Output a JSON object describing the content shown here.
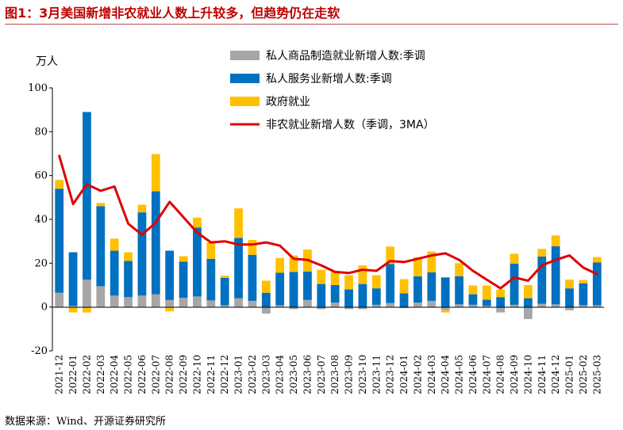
{
  "header": {
    "title": "图1：3月美国新增非农就业人数上升较多，但趋势仍在走软"
  },
  "footer": {
    "source": "数据来源：Wind、开源证券研究所"
  },
  "chart_data": {
    "type": "bar",
    "stacked": true,
    "unit_label": "万人",
    "ylim": [
      -20,
      100
    ],
    "yticks": [
      -20,
      0,
      20,
      40,
      60,
      80,
      100
    ],
    "grid": false,
    "legend_position": "top-right",
    "categories": [
      "2021-12",
      "2022-01",
      "2022-02",
      "2022-03",
      "2022-04",
      "2022-05",
      "2022-06",
      "2022-07",
      "2022-08",
      "2022-09",
      "2022-10",
      "2022-11",
      "2022-12",
      "2023-01",
      "2023-02",
      "2023-03",
      "2023-04",
      "2023-05",
      "2023-06",
      "2023-07",
      "2023-08",
      "2023-09",
      "2023-10",
      "2023-11",
      "2023-12",
      "2024-01",
      "2024-02",
      "2024-03",
      "2024-04",
      "2024-05",
      "2024-06",
      "2024-07",
      "2024-08",
      "2024-09",
      "2024-10",
      "2024-11",
      "2024-12",
      "2025-01",
      "2025-02",
      "2025-03"
    ],
    "series": [
      {
        "name": "私人商品制造就业新增人数:季调",
        "kind": "bar",
        "color": "#a6a6a6",
        "values": [
          6.5,
          0.5,
          12.5,
          9.5,
          5.2,
          4.5,
          5.2,
          5.8,
          3.2,
          4.2,
          4.8,
          3.0,
          0.8,
          4.0,
          2.8,
          -3.0,
          0.8,
          -1.0,
          3.2,
          -1.0,
          2.0,
          -1.0,
          -1.0,
          1.0,
          1.8,
          -0.5,
          2.0,
          2.8,
          -1.5,
          1.2,
          1.0,
          0.5,
          -2.5,
          1.0,
          -5.5,
          1.5,
          1.2,
          -1.5,
          0.8,
          0.8
        ]
      },
      {
        "name": "私人服务业新增人数:季调",
        "kind": "bar",
        "color": "#0070c0",
        "values": [
          47.5,
          24.5,
          76.5,
          36.5,
          20.5,
          16.5,
          38.0,
          47.0,
          22.5,
          16.5,
          31.5,
          19.0,
          12.5,
          27.5,
          21.0,
          6.5,
          14.8,
          16.0,
          13.0,
          10.5,
          8.0,
          8.0,
          10.5,
          7.5,
          17.8,
          6.2,
          12.0,
          13.0,
          13.5,
          12.8,
          4.8,
          2.8,
          4.5,
          18.8,
          4.0,
          21.5,
          26.5,
          8.5,
          10.0,
          19.5
        ]
      },
      {
        "name": "政府就业",
        "kind": "bar",
        "color": "#ffc000",
        "values": [
          4.0,
          -2.5,
          -2.5,
          1.5,
          5.5,
          4.0,
          3.5,
          17.0,
          -2.0,
          2.5,
          4.5,
          7.5,
          1.0,
          13.5,
          6.8,
          5.5,
          6.8,
          7.5,
          10.0,
          6.5,
          6.5,
          6.5,
          8.5,
          6.0,
          8.0,
          6.5,
          8.8,
          9.5,
          -1.0,
          6.0,
          4.0,
          6.5,
          3.5,
          4.5,
          6.0,
          3.5,
          5.0,
          4.0,
          1.5,
          2.5
        ]
      },
      {
        "name": "非农就业新增人数（季调，3MA）",
        "kind": "line",
        "color": "#e00000",
        "values": [
          69.0,
          47.0,
          56.0,
          53.0,
          55.0,
          38.0,
          33.0,
          38.5,
          48.0,
          41.0,
          34.0,
          29.5,
          30.0,
          28.5,
          28.5,
          29.5,
          28.0,
          22.0,
          21.5,
          19.0,
          16.0,
          15.5,
          17.0,
          16.5,
          21.0,
          20.5,
          22.0,
          23.5,
          24.5,
          21.5,
          16.5,
          12.5,
          8.5,
          13.5,
          12.0,
          19.0,
          21.5,
          23.5,
          18.0,
          15.0
        ]
      }
    ]
  }
}
